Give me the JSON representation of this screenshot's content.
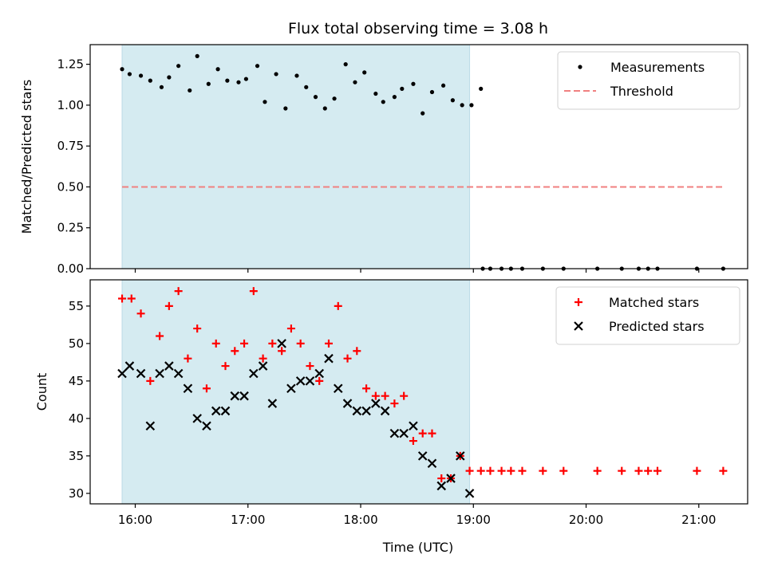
{
  "chart_data": [
    {
      "type": "scatter",
      "title": "Flux total observing time = 3.08 h",
      "ylabel": "Matched/Predicted stars",
      "xlabel": "",
      "xlim": [
        "15:36",
        "21:26"
      ],
      "ylim": [
        0,
        1.37
      ],
      "x_ticks": [
        "16:00",
        "17:00",
        "18:00",
        "19:00",
        "20:00",
        "21:00"
      ],
      "y_ticks": [
        "0.00",
        "0.25",
        "0.50",
        "0.75",
        "1.00",
        "1.25"
      ],
      "y_tick_values": [
        0,
        0.25,
        0.5,
        0.75,
        1.0,
        1.25
      ],
      "shaded_span": [
        "15:53",
        "18:58"
      ],
      "shaded_color": "#d5ebf1",
      "legend_position": "upper right",
      "grid": false,
      "series": [
        {
          "name": "Measurements",
          "marker": "dot",
          "color": "#000000",
          "points": [
            [
              "15:53",
              1.22
            ],
            [
              "15:57",
              1.19
            ],
            [
              "16:03",
              1.18
            ],
            [
              "16:08",
              1.15
            ],
            [
              "16:14",
              1.11
            ],
            [
              "16:18",
              1.17
            ],
            [
              "16:23",
              1.24
            ],
            [
              "16:29",
              1.09
            ],
            [
              "16:33",
              1.3
            ],
            [
              "16:39",
              1.13
            ],
            [
              "16:44",
              1.22
            ],
            [
              "16:49",
              1.15
            ],
            [
              "16:55",
              1.14
            ],
            [
              "16:59",
              1.16
            ],
            [
              "17:05",
              1.24
            ],
            [
              "17:09",
              1.02
            ],
            [
              "17:15",
              1.19
            ],
            [
              "17:20",
              0.98
            ],
            [
              "17:26",
              1.18
            ],
            [
              "17:31",
              1.11
            ],
            [
              "17:36",
              1.05
            ],
            [
              "17:41",
              0.98
            ],
            [
              "17:46",
              1.04
            ],
            [
              "17:52",
              1.25
            ],
            [
              "17:57",
              1.14
            ],
            [
              "18:02",
              1.2
            ],
            [
              "18:08",
              1.07
            ],
            [
              "18:12",
              1.02
            ],
            [
              "18:18",
              1.05
            ],
            [
              "18:22",
              1.1
            ],
            [
              "18:28",
              1.13
            ],
            [
              "18:33",
              0.95
            ],
            [
              "18:38",
              1.08
            ],
            [
              "18:44",
              1.12
            ],
            [
              "18:49",
              1.03
            ],
            [
              "18:54",
              1.0
            ],
            [
              "18:59",
              1.0
            ],
            [
              "19:04",
              1.1
            ],
            [
              "19:05",
              0.0
            ],
            [
              "19:09",
              0.0
            ],
            [
              "19:15",
              0.0
            ],
            [
              "19:20",
              0.0
            ],
            [
              "19:26",
              0.0
            ],
            [
              "19:37",
              0.0
            ],
            [
              "19:48",
              0.0
            ],
            [
              "20:06",
              0.0
            ],
            [
              "20:19",
              0.0
            ],
            [
              "20:28",
              0.0
            ],
            [
              "20:33",
              0.0
            ],
            [
              "20:38",
              0.0
            ],
            [
              "20:59",
              0.0
            ],
            [
              "21:13",
              0.0
            ]
          ]
        },
        {
          "name": "Threshold",
          "marker": "dashed-line",
          "color": "#f08080",
          "points": [
            [
              "15:53",
              0.5
            ],
            [
              "21:13",
              0.5
            ]
          ]
        }
      ]
    },
    {
      "type": "scatter",
      "title": "",
      "xlabel": "Time (UTC)",
      "ylabel": "Count",
      "xlim": [
        "15:36",
        "21:26"
      ],
      "ylim": [
        28.6,
        58.5
      ],
      "x_ticks": [
        "16:00",
        "17:00",
        "18:00",
        "19:00",
        "20:00",
        "21:00"
      ],
      "y_ticks": [
        "30",
        "35",
        "40",
        "45",
        "50",
        "55"
      ],
      "y_tick_values": [
        30,
        35,
        40,
        45,
        50,
        55
      ],
      "shaded_span": [
        "15:53",
        "18:58"
      ],
      "shaded_color": "#d5ebf1",
      "legend_position": "upper right",
      "grid": false,
      "series": [
        {
          "name": "Matched stars",
          "marker": "plus",
          "color": "#ff0000",
          "points": [
            [
              "15:53",
              56
            ],
            [
              "15:58",
              56
            ],
            [
              "16:03",
              54
            ],
            [
              "16:08",
              45
            ],
            [
              "16:13",
              51
            ],
            [
              "16:18",
              55
            ],
            [
              "16:23",
              57
            ],
            [
              "16:28",
              48
            ],
            [
              "16:33",
              52
            ],
            [
              "16:38",
              44
            ],
            [
              "16:43",
              50
            ],
            [
              "16:48",
              47
            ],
            [
              "16:53",
              49
            ],
            [
              "16:58",
              50
            ],
            [
              "17:03",
              57
            ],
            [
              "17:08",
              48
            ],
            [
              "17:13",
              50
            ],
            [
              "17:18",
              49
            ],
            [
              "17:23",
              52
            ],
            [
              "17:28",
              50
            ],
            [
              "17:33",
              47
            ],
            [
              "17:38",
              45
            ],
            [
              "17:43",
              50
            ],
            [
              "17:48",
              55
            ],
            [
              "17:53",
              48
            ],
            [
              "17:58",
              49
            ],
            [
              "18:03",
              44
            ],
            [
              "18:08",
              43
            ],
            [
              "18:13",
              43
            ],
            [
              "18:18",
              42
            ],
            [
              "18:23",
              43
            ],
            [
              "18:28",
              37
            ],
            [
              "18:33",
              38
            ],
            [
              "18:38",
              38
            ],
            [
              "18:43",
              32
            ],
            [
              "18:48",
              32
            ],
            [
              "18:53",
              35
            ],
            [
              "18:58",
              33
            ],
            [
              "19:04",
              33
            ],
            [
              "19:09",
              33
            ],
            [
              "19:15",
              33
            ],
            [
              "19:20",
              33
            ],
            [
              "19:26",
              33
            ],
            [
              "19:37",
              33
            ],
            [
              "19:48",
              33
            ],
            [
              "20:06",
              33
            ],
            [
              "20:19",
              33
            ],
            [
              "20:28",
              33
            ],
            [
              "20:33",
              33
            ],
            [
              "20:38",
              33
            ],
            [
              "20:59",
              33
            ],
            [
              "21:13",
              33
            ]
          ]
        },
        {
          "name": "Predicted stars",
          "marker": "x",
          "color": "#000000",
          "points": [
            [
              "15:53",
              46
            ],
            [
              "15:57",
              47
            ],
            [
              "16:03",
              46
            ],
            [
              "16:08",
              39
            ],
            [
              "16:13",
              46
            ],
            [
              "16:18",
              47
            ],
            [
              "16:23",
              46
            ],
            [
              "16:28",
              44
            ],
            [
              "16:33",
              40
            ],
            [
              "16:38",
              39
            ],
            [
              "16:43",
              41
            ],
            [
              "16:48",
              41
            ],
            [
              "16:53",
              43
            ],
            [
              "16:58",
              43
            ],
            [
              "17:03",
              46
            ],
            [
              "17:08",
              47
            ],
            [
              "17:13",
              42
            ],
            [
              "17:18",
              50
            ],
            [
              "17:23",
              44
            ],
            [
              "17:28",
              45
            ],
            [
              "17:33",
              45
            ],
            [
              "17:38",
              46
            ],
            [
              "17:43",
              48
            ],
            [
              "17:48",
              44
            ],
            [
              "17:53",
              42
            ],
            [
              "17:58",
              41
            ],
            [
              "18:03",
              41
            ],
            [
              "18:08",
              42
            ],
            [
              "18:13",
              41
            ],
            [
              "18:18",
              38
            ],
            [
              "18:23",
              38
            ],
            [
              "18:28",
              39
            ],
            [
              "18:33",
              35
            ],
            [
              "18:38",
              34
            ],
            [
              "18:43",
              31
            ],
            [
              "18:48",
              32
            ],
            [
              "18:53",
              35
            ],
            [
              "18:58",
              30
            ]
          ]
        }
      ]
    }
  ]
}
